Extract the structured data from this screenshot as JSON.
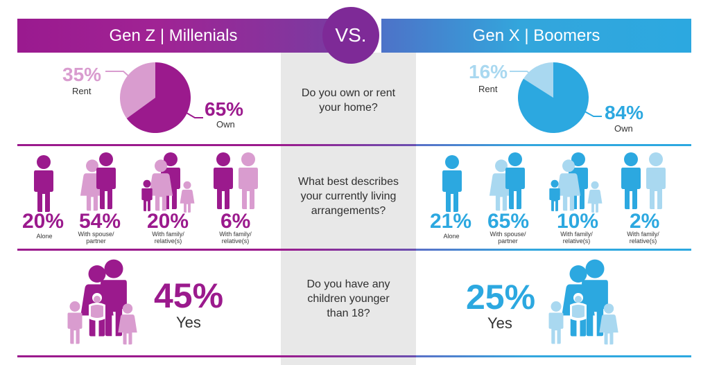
{
  "header": {
    "left_title": "Gen Z | Millenials",
    "right_title": "Gen X | Boomers",
    "vs_label": "VS."
  },
  "colors": {
    "genz_dark": "#9b1a8d",
    "genz_light": "#d99ccf",
    "boomer_dark": "#2ca8e0",
    "boomer_light": "#a9d8f0",
    "center_bg": "#e8e8e8"
  },
  "sections": {
    "home": {
      "question": "Do you own or rent your home?",
      "genz": {
        "rent_pct": "35%",
        "rent_label": "Rent",
        "own_pct": "65%",
        "own_label": "Own"
      },
      "boomers": {
        "rent_pct": "16%",
        "rent_label": "Rent",
        "own_pct": "84%",
        "own_label": "Own"
      }
    },
    "living": {
      "question": "What best describes your currently living arrangements?",
      "genz": [
        {
          "pct": "20%",
          "label": "Alone",
          "icon": "single-person-icon"
        },
        {
          "pct": "54%",
          "label": "With spouse/ partner",
          "icon": "couple-icon"
        },
        {
          "pct": "20%",
          "label": "With family/ relative(s)",
          "icon": "family-icon"
        },
        {
          "pct": "6%",
          "label": "With family/ relative(s)",
          "icon": "two-adults-icon"
        }
      ],
      "boomers": [
        {
          "pct": "21%",
          "label": "Alone",
          "icon": "single-person-icon"
        },
        {
          "pct": "65%",
          "label": "With spouse/ partner",
          "icon": "couple-icon"
        },
        {
          "pct": "10%",
          "label": "With family/ relative(s)",
          "icon": "family-icon"
        },
        {
          "pct": "2%",
          "label": "With family/ relative(s)",
          "icon": "two-adults-icon"
        }
      ]
    },
    "children": {
      "question": "Do you have any children younger than 18?",
      "genz": {
        "pct": "45%",
        "label": "Yes",
        "icon": "parents-with-kids-icon"
      },
      "boomers": {
        "pct": "25%",
        "label": "Yes",
        "icon": "parents-with-kids-icon"
      }
    }
  },
  "chart_data": [
    {
      "type": "pie",
      "categories": [
        "Rent",
        "Own"
      ],
      "values": [
        35,
        65
      ]
    },
    {
      "type": "pie",
      "categories": [
        "Rent",
        "Own"
      ],
      "values": [
        16,
        84
      ]
    }
  ]
}
